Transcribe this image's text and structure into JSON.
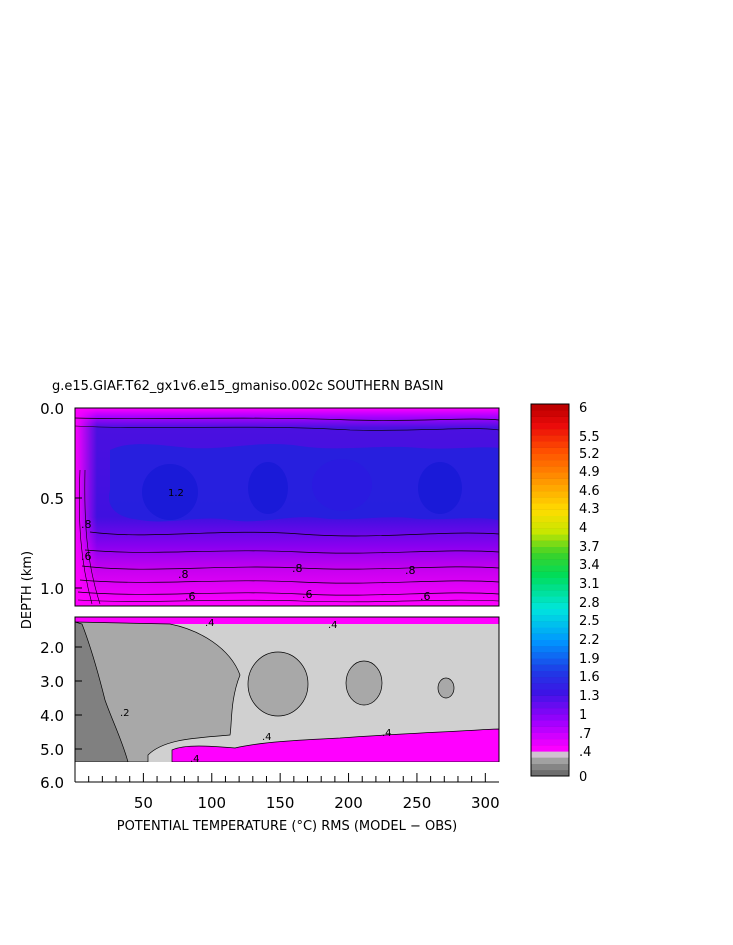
{
  "chart_data": {
    "type": "heatmap",
    "title": "g.e15.GIAF.T62_gx1v6.e15_gmaniso.002c SOUTHERN BASIN",
    "xlabel": "POTENTIAL TEMPERATURE (°C) RMS (MODEL − OBS)",
    "ylabel": "DEPTH (km)",
    "x_range": [
      0,
      310
    ],
    "x_ticks": [
      "50",
      "100",
      "150",
      "200",
      "250",
      "300"
    ],
    "upper_panel": {
      "y_range": [
        0.0,
        1.1
      ],
      "y_ticks": [
        "0.0",
        "0.5",
        "1.0"
      ]
    },
    "lower_panel": {
      "y_range": [
        1.1,
        6.0
      ],
      "y_ticks": [
        "2.0",
        "3.0",
        "4.0",
        "5.0",
        "6.0"
      ]
    },
    "contour_labels_upper": [
      ".8",
      ".8",
      ".8",
      ".8",
      ".6",
      ".6",
      ".6",
      ".6",
      "1.2"
    ],
    "contour_labels_lower": [
      ".4",
      ".4",
      ".4",
      ".4",
      ".4",
      ".2"
    ],
    "colorbar": {
      "labels": [
        "6",
        "5.5",
        "5.2",
        "4.9",
        "4.6",
        "4.3",
        "4",
        "3.7",
        "3.4",
        "3.1",
        "2.8",
        "2.5",
        "2.2",
        "1.9",
        "1.6",
        "1.3",
        "1",
        ".7",
        ".4",
        "0"
      ]
    }
  },
  "colors": {
    "magenta": "#ff00ff",
    "purple": "#7a00ee",
    "blue": "#2222dd",
    "light_gray": "#d0d0d0",
    "mid_gray": "#a8a8a8",
    "dark_gray": "#808080"
  }
}
